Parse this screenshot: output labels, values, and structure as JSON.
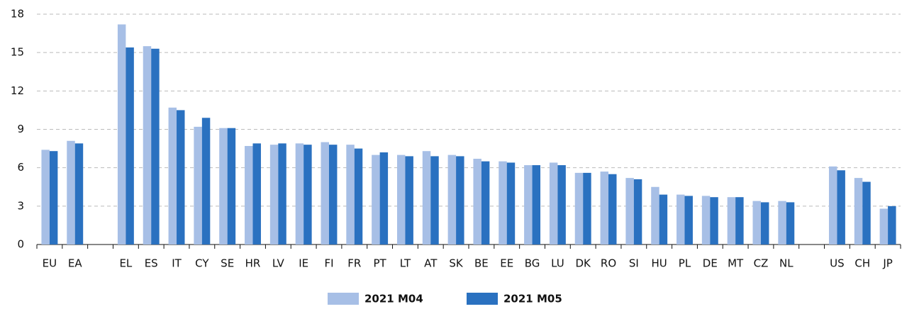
{
  "chart_data": {
    "type": "bar",
    "categories": [
      "EU",
      "EA",
      null,
      "EL",
      "ES",
      "IT",
      "CY",
      "SE",
      "HR",
      "LV",
      "IE",
      "FI",
      "FR",
      "PT",
      "LT",
      "AT",
      "SK",
      "BE",
      "EE",
      "BG",
      "LU",
      "DK",
      "RO",
      "SI",
      "HU",
      "PL",
      "DE",
      "MT",
      "CZ",
      "NL",
      null,
      "US",
      "CH",
      "JP"
    ],
    "series": [
      {
        "name": "2021 M04",
        "color": "#a7bfe6",
        "values": [
          7.4,
          8.1,
          null,
          17.2,
          15.5,
          10.7,
          9.2,
          9.1,
          7.7,
          7.8,
          7.9,
          8.0,
          7.8,
          7.0,
          7.0,
          7.3,
          7.0,
          6.7,
          6.5,
          6.2,
          6.4,
          5.6,
          5.7,
          5.2,
          4.5,
          3.9,
          3.8,
          3.7,
          3.4,
          3.4,
          null,
          6.1,
          5.2,
          2.8
        ]
      },
      {
        "name": "2021 M05",
        "color": "#2a71c0",
        "values": [
          7.3,
          7.9,
          null,
          15.4,
          15.3,
          10.5,
          9.9,
          9.1,
          7.9,
          7.9,
          7.8,
          7.8,
          7.5,
          7.2,
          6.9,
          6.9,
          6.9,
          6.5,
          6.4,
          6.2,
          6.2,
          5.6,
          5.5,
          5.1,
          3.9,
          3.8,
          3.7,
          3.7,
          3.3,
          3.3,
          null,
          5.8,
          4.9,
          3.0
        ]
      }
    ],
    "ylim": [
      0,
      18
    ],
    "yticks": [
      0,
      3,
      6,
      9,
      12,
      15,
      18
    ],
    "grid": true,
    "legend": "bottom"
  }
}
